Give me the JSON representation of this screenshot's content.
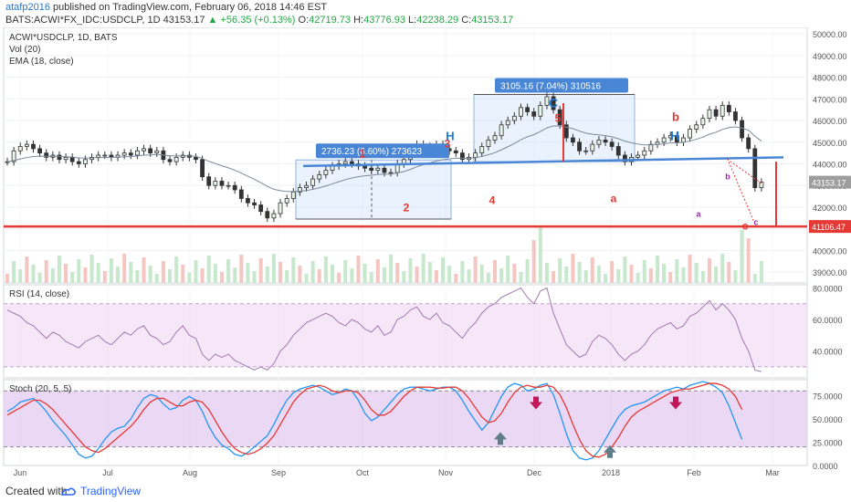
{
  "header": {
    "user": "atafp2016",
    "published": " published on TradingView.com, February 06, 2018 14:46 EST",
    "symbol": "BATS:ACWI*FX_IDC:USDCLP, 1D ",
    "last": "43153.17",
    "change": "+56.35 (+0.13%)",
    "o_label": "O:",
    "o": "42719.73",
    "h_label": "H:",
    "h": "43776.93",
    "l_label": "L:",
    "l": "42238.29",
    "c_label": "C:",
    "c": "43153.17"
  },
  "footer": {
    "created_with": "Created with",
    "brand": "TradingView"
  },
  "chart_data": [
    {
      "type": "candlestick",
      "pane": "price",
      "legend": [
        "ACWI*USDCLP, 1D, BATS",
        "Vol (20)",
        "EMA (18, close)"
      ],
      "ylim": [
        38500,
        50300
      ],
      "yticks": [
        39000,
        40000,
        41000,
        42000,
        43000,
        44000,
        45000,
        46000,
        47000,
        48000,
        49000,
        50000
      ],
      "ytick_labels": [
        "39000.00",
        "40000.00",
        "41000.00",
        "42000.00",
        "43000.00",
        "44000.00",
        "45000.00",
        "46000.00",
        "47000.00",
        "48000.00",
        "49000.00",
        "50000.00"
      ],
      "price_labels": [
        {
          "value": 43153.17,
          "text": "43153.17",
          "color": "#9e9e9e"
        },
        {
          "value": 41106.47,
          "text": "41106.47",
          "color": "#e53935"
        }
      ],
      "close_series": [
        44100,
        44600,
        44800,
        44900,
        44700,
        44500,
        44300,
        44400,
        44200,
        44300,
        44100,
        44000,
        44200,
        44300,
        44400,
        44400,
        44300,
        44400,
        44500,
        44400,
        44600,
        44700,
        44500,
        44600,
        44200,
        44100,
        44300,
        44400,
        44300,
        44200,
        43400,
        43000,
        43200,
        43000,
        43000,
        42800,
        42400,
        42200,
        42100,
        41800,
        41500,
        41700,
        42200,
        42400,
        42700,
        42900,
        43000,
        43300,
        43500,
        43700,
        43900,
        44000,
        44100,
        44000,
        43900,
        43800,
        43700,
        43800,
        43600,
        43600,
        44000,
        44200,
        44600,
        44900,
        44800,
        44700,
        44900,
        44700,
        44600,
        44500,
        44200,
        44300,
        44500,
        44800,
        45100,
        45300,
        45800,
        46000,
        46200,
        46600,
        46400,
        46200,
        46700,
        47100,
        46500,
        45800,
        45200,
        45000,
        44600,
        44600,
        44900,
        45100,
        45000,
        44800,
        44400,
        44100,
        44300,
        44400,
        44600,
        44900,
        45000,
        45200,
        45300,
        45000,
        45200,
        45600,
        45800,
        46100,
        46500,
        46200,
        46700,
        46400,
        46000,
        45200,
        44700,
        42900,
        43153
      ],
      "annotations": {
        "wave_labels": [
          {
            "text": "1",
            "color": "#e53935"
          },
          {
            "text": "2",
            "color": "#e53935"
          },
          {
            "text": "3",
            "color": "#e53935"
          },
          {
            "text": "4",
            "color": "#e53935"
          },
          {
            "text": "5",
            "color": "#e53935"
          },
          {
            "text": "C",
            "color": "#1f77d0"
          },
          {
            "text": "H",
            "color": "#1f77d0"
          },
          {
            "text": "H",
            "color": "#1f77d0"
          },
          {
            "text": "b",
            "color": "#e53935"
          },
          {
            "text": "a",
            "color": "#e53935"
          },
          {
            "text": "a",
            "color": "#9c27b0"
          },
          {
            "text": "b",
            "color": "#9c27b0"
          },
          {
            "text": "c",
            "color": "#e53935"
          },
          {
            "text": "c",
            "color": "#9c27b0"
          }
        ],
        "ranges": [
          {
            "text": "2736.23 (6.60%) 273623",
            "from": 41450,
            "to": 44180
          },
          {
            "text": "3105.16 (7.04%) 310516",
            "from": 44100,
            "to": 47200
          }
        ],
        "support_level": 41106.47,
        "trendline": {
          "from": 43900,
          "to": 44300
        }
      },
      "x_labels": [
        "Jun",
        "Jul",
        "Aug",
        "Sep",
        "Oct",
        "Nov",
        "Dec",
        "2018",
        "Feb",
        "Mar"
      ]
    },
    {
      "type": "line",
      "pane": "rsi",
      "legend": "RSI (14, close)",
      "ylim": [
        23,
        82
      ],
      "yticks": [
        40,
        60,
        80
      ],
      "ytick_labels": [
        "40.0000",
        "60.0000",
        "80.0000"
      ],
      "band": [
        30,
        70
      ],
      "values": [
        66,
        64,
        62,
        58,
        56,
        52,
        48,
        52,
        50,
        46,
        44,
        42,
        46,
        48,
        50,
        46,
        44,
        48,
        52,
        50,
        54,
        56,
        50,
        48,
        44,
        46,
        52,
        56,
        50,
        48,
        38,
        34,
        38,
        36,
        38,
        34,
        32,
        30,
        28,
        30,
        28,
        32,
        40,
        44,
        50,
        54,
        58,
        60,
        62,
        64,
        62,
        58,
        56,
        60,
        58,
        54,
        52,
        56,
        50,
        52,
        60,
        62,
        66,
        68,
        62,
        60,
        64,
        58,
        56,
        52,
        48,
        54,
        58,
        64,
        68,
        70,
        74,
        76,
        78,
        80,
        74,
        70,
        78,
        80,
        64,
        54,
        44,
        40,
        36,
        38,
        46,
        50,
        48,
        44,
        38,
        34,
        38,
        40,
        44,
        50,
        54,
        56,
        58,
        54,
        56,
        62,
        64,
        68,
        72,
        66,
        70,
        66,
        60,
        48,
        40,
        28,
        27
      ]
    },
    {
      "type": "line",
      "pane": "stoch",
      "legend": "Stoch (20, 5, 5)",
      "ylim": [
        0,
        92
      ],
      "yticks": [
        0,
        25,
        50,
        75
      ],
      "ytick_labels": [
        "0.0000",
        "25.0000",
        "50.0000",
        "75.0000"
      ],
      "band": [
        20,
        80
      ],
      "series": [
        {
          "name": "K",
          "color": "#2196f3",
          "values": [
            58,
            62,
            68,
            70,
            72,
            66,
            58,
            48,
            40,
            32,
            22,
            12,
            8,
            10,
            18,
            28,
            36,
            40,
            42,
            50,
            62,
            72,
            76,
            74,
            66,
            60,
            62,
            70,
            74,
            70,
            58,
            42,
            30,
            22,
            18,
            12,
            10,
            14,
            20,
            26,
            32,
            44,
            58,
            70,
            78,
            82,
            84,
            86,
            84,
            80,
            76,
            78,
            82,
            80,
            70,
            56,
            48,
            52,
            60,
            68,
            76,
            82,
            84,
            84,
            82,
            80,
            82,
            84,
            84,
            80,
            70,
            58,
            48,
            38,
            46,
            60,
            74,
            84,
            88,
            86,
            80,
            82,
            86,
            88,
            76,
            56,
            34,
            16,
            8,
            6,
            8,
            16,
            28,
            40,
            52,
            60,
            64,
            66,
            68,
            72,
            76,
            80,
            82,
            84,
            82,
            86,
            88,
            90,
            88,
            84,
            78,
            64,
            46,
            28
          ]
        },
        {
          "name": "D",
          "color": "#e53935",
          "values": [
            54,
            58,
            62,
            66,
            70,
            70,
            66,
            60,
            52,
            44,
            36,
            28,
            20,
            16,
            14,
            18,
            24,
            30,
            36,
            42,
            50,
            60,
            68,
            72,
            72,
            68,
            64,
            64,
            68,
            70,
            68,
            60,
            48,
            36,
            26,
            18,
            14,
            12,
            14,
            18,
            24,
            32,
            44,
            56,
            68,
            76,
            82,
            84,
            86,
            84,
            80,
            78,
            80,
            80,
            78,
            70,
            60,
            54,
            54,
            58,
            66,
            74,
            80,
            84,
            84,
            84,
            83,
            83,
            84,
            84,
            80,
            72,
            62,
            52,
            46,
            48,
            56,
            68,
            78,
            84,
            86,
            84,
            84,
            86,
            84,
            76,
            62,
            44,
            28,
            16,
            10,
            9,
            12,
            20,
            30,
            42,
            52,
            58,
            62,
            66,
            70,
            74,
            78,
            80,
            82,
            82,
            84,
            86,
            88,
            88,
            86,
            82,
            74,
            60
          ]
        }
      ],
      "arrows": [
        {
          "dir": "up",
          "color": "#607d8b"
        },
        {
          "dir": "down",
          "color": "#c2185b"
        },
        {
          "dir": "up",
          "color": "#607d8b"
        },
        {
          "dir": "down",
          "color": "#c2185b"
        }
      ]
    }
  ]
}
